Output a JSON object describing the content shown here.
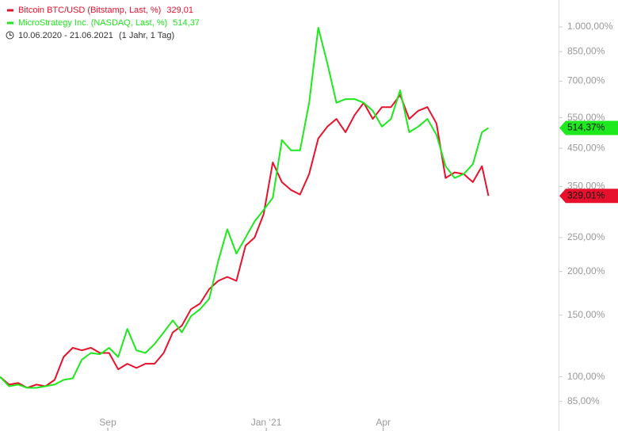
{
  "chart_data": {
    "type": "line",
    "period": "10.06.2020 - 21.06.2021",
    "period_length": "(1 Jahr, 1 Tag)",
    "log_scale": true,
    "x": [
      "2020-06-10",
      "2020-06-17",
      "2020-06-24",
      "2020-07-01",
      "2020-07-08",
      "2020-07-15",
      "2020-07-22",
      "2020-07-29",
      "2020-08-05",
      "2020-08-12",
      "2020-08-19",
      "2020-08-26",
      "2020-09-02",
      "2020-09-09",
      "2020-09-16",
      "2020-09-23",
      "2020-09-30",
      "2020-10-07",
      "2020-10-14",
      "2020-10-21",
      "2020-10-28",
      "2020-11-04",
      "2020-11-11",
      "2020-11-18",
      "2020-11-25",
      "2020-12-02",
      "2020-12-09",
      "2020-12-16",
      "2020-12-23",
      "2020-12-30",
      "2021-01-06",
      "2021-01-13",
      "2021-01-20",
      "2021-01-27",
      "2021-02-03",
      "2021-02-10",
      "2021-02-17",
      "2021-02-24",
      "2021-03-03",
      "2021-03-10",
      "2021-03-17",
      "2021-03-24",
      "2021-03-31",
      "2021-04-07",
      "2021-04-14",
      "2021-04-21",
      "2021-04-28",
      "2021-05-05",
      "2021-05-12",
      "2021-05-19",
      "2021-05-26",
      "2021-06-02",
      "2021-06-09",
      "2021-06-16",
      "2021-06-21"
    ],
    "series": [
      {
        "name": "Bitcoin BTC/USD (Bitstamp, Last, %)",
        "color": "#e8112d",
        "legend_value_label": "329,01",
        "end_label": "329,01%",
        "values": [
          100,
          95,
          96,
          93,
          95,
          94,
          98,
          114,
          121,
          119,
          121,
          117,
          117,
          105,
          109,
          106,
          109,
          109,
          117,
          134,
          140,
          156,
          162,
          178,
          188,
          193,
          188,
          237,
          250,
          292,
          410,
          360,
          342,
          332,
          380,
          480,
          519,
          546,
          500,
          560,
          607,
          546,
          590,
          590,
          639,
          546,
          576,
          590,
          530,
          370,
          384,
          380,
          360,
          400,
          329.01
        ]
      },
      {
        "name": "MicroStrategy Inc. (NASDAQ, Last, %)",
        "color": "#1ee81e",
        "legend_value_label": "514,37",
        "end_label": "514,37%",
        "values": [
          100,
          94,
          95,
          93,
          93,
          94,
          95,
          98,
          99,
          112,
          117,
          116,
          121,
          114,
          137,
          119,
          117,
          124,
          134,
          145,
          134,
          149,
          156,
          167,
          214,
          264,
          225,
          250,
          278,
          300,
          325,
          475,
          444,
          444,
          607,
          995,
          787,
          607,
          622,
          622,
          607,
          576,
          519,
          546,
          659,
          500,
          519,
          546,
          492,
          400,
          370,
          380,
          405,
          500,
          514.37
        ]
      }
    ],
    "xlim": [
      "2020-06-10",
      "2021-08-14"
    ],
    "xticks": [
      {
        "value": "2020-09-01",
        "label": "Sep"
      },
      {
        "value": "2021-01-01",
        "label": "Jan ‘21"
      },
      {
        "value": "2021-04-01",
        "label": "Apr"
      }
    ],
    "ylim": [
      70,
      1194
    ],
    "yticks": [
      {
        "value": 85,
        "label": "85,00%"
      },
      {
        "value": 100,
        "label": "100,00%"
      },
      {
        "value": 150,
        "label": "150,00%"
      },
      {
        "value": 200,
        "label": "200,00%"
      },
      {
        "value": 250,
        "label": "250,00%"
      },
      {
        "value": 350,
        "label": "350,00%"
      },
      {
        "value": 450,
        "label": "450,00%"
      },
      {
        "value": 550,
        "label": "550,00%"
      },
      {
        "value": 700,
        "label": "700,00%"
      },
      {
        "value": 850,
        "label": "850,00%"
      },
      {
        "value": 1000,
        "label": "1.000,00%"
      }
    ]
  }
}
